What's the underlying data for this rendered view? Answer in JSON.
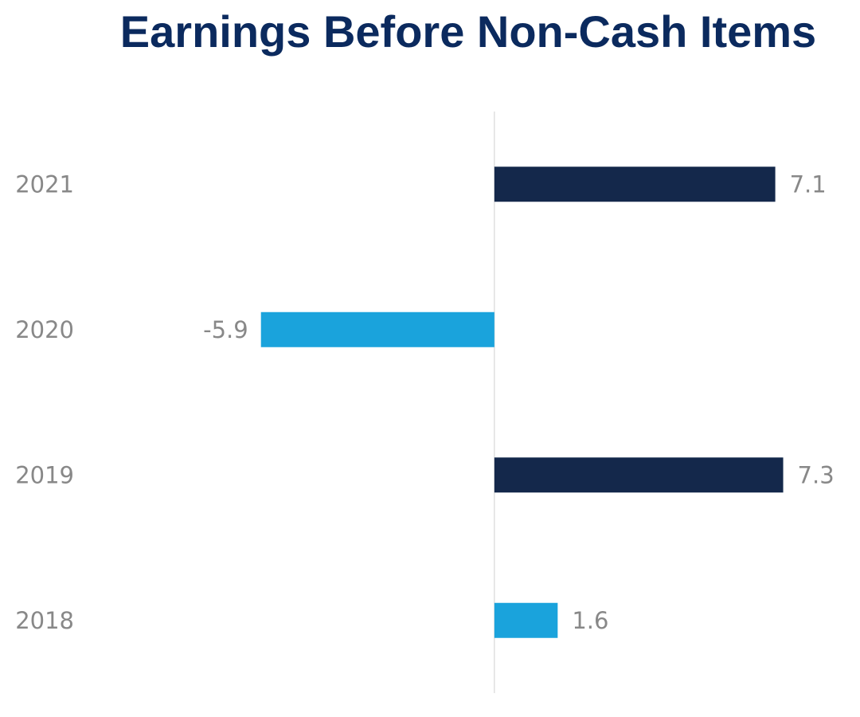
{
  "chart_data": {
    "type": "hbar",
    "title": "Earnings Before Non-Cash Items",
    "categories": [
      "2021",
      "2020",
      "2019",
      "2018"
    ],
    "values": [
      7.1,
      -5.9,
      7.3,
      1.6
    ],
    "colors": [
      "#14284b",
      "#1aa3dc",
      "#14284b",
      "#1aa3dc"
    ],
    "xlim": [
      -10,
      9
    ]
  }
}
